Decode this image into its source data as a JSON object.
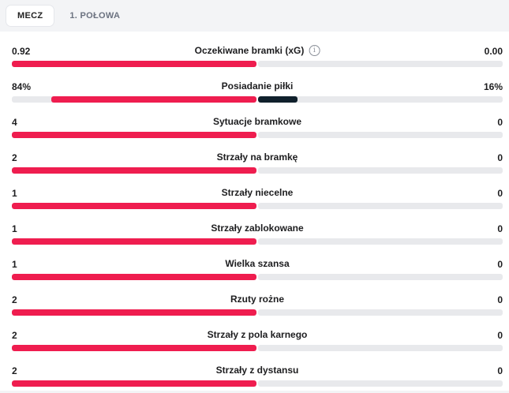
{
  "tabs": [
    {
      "label": "MECZ",
      "active": true
    },
    {
      "label": "1. POŁOWA",
      "active": false
    }
  ],
  "colors": {
    "home": "#ef1d4f",
    "away": "#10202c",
    "track": "#e8e9ec"
  },
  "stats": [
    {
      "name": "Oczekiwane bramki (xG)",
      "home": "0.92",
      "away": "0.00",
      "home_share": 1.0,
      "away_share": 0.0,
      "info_icon": "info-icon"
    },
    {
      "name": "Posiadanie piłki",
      "home": "84%",
      "away": "16%",
      "home_share": 0.84,
      "away_share": 0.16
    },
    {
      "name": "Sytuacje bramkowe",
      "home": "4",
      "away": "0",
      "home_share": 1.0,
      "away_share": 0.0
    },
    {
      "name": "Strzały na bramkę",
      "home": "2",
      "away": "0",
      "home_share": 1.0,
      "away_share": 0.0
    },
    {
      "name": "Strzały niecelne",
      "home": "1",
      "away": "0",
      "home_share": 1.0,
      "away_share": 0.0
    },
    {
      "name": "Strzały zablokowane",
      "home": "1",
      "away": "0",
      "home_share": 1.0,
      "away_share": 0.0
    },
    {
      "name": "Wielka szansa",
      "home": "1",
      "away": "0",
      "home_share": 1.0,
      "away_share": 0.0
    },
    {
      "name": "Rzuty rożne",
      "home": "2",
      "away": "0",
      "home_share": 1.0,
      "away_share": 0.0
    },
    {
      "name": "Strzały z pola karnego",
      "home": "2",
      "away": "0",
      "home_share": 1.0,
      "away_share": 0.0
    },
    {
      "name": "Strzały z dystansu",
      "home": "2",
      "away": "0",
      "home_share": 1.0,
      "away_share": 0.0
    }
  ]
}
